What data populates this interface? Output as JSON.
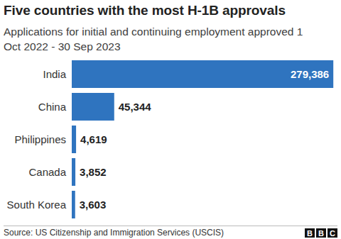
{
  "chart_data": {
    "type": "bar",
    "orientation": "horizontal",
    "title": "Five countries with the most H-1B approvals",
    "subtitle": "Applications for initial and continuing employment approved 1 Oct 2022 - 30 Sep 2023",
    "categories": [
      "India",
      "China",
      "Philippines",
      "Canada",
      "South Korea"
    ],
    "values": [
      279386,
      45344,
      4619,
      3852,
      3603
    ],
    "value_labels": [
      "279,386",
      "45,344",
      "4,619",
      "3,852",
      "3,603"
    ],
    "color": "#2f74bf",
    "xlim": [
      0,
      280000
    ],
    "grid": false,
    "tick_labels": "y",
    "data_labels": true,
    "source": "Source: US Citizenship and Immigration Services (USCIS)",
    "credit": "BBC"
  }
}
